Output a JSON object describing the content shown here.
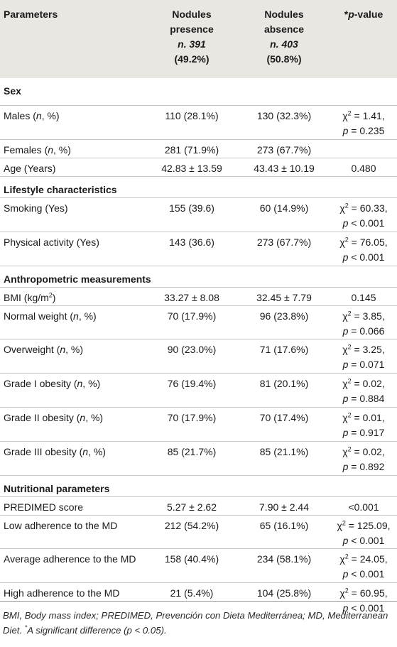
{
  "header": {
    "parameters": "Parameters",
    "presence": [
      "Nodules",
      "presence",
      "n. 391",
      "(49.2%)"
    ],
    "absence": [
      "Nodules",
      "absence",
      "n. 403",
      "(50.8%)"
    ],
    "pvalue": "*p-value"
  },
  "rows": [
    {
      "type": "section",
      "label": "Sex"
    },
    {
      "label": "Males (n, %)",
      "p": "110 (28.1%)",
      "a": "130 (32.3%)",
      "v": [
        "χ2 = 1.41,",
        "p = 0.235"
      ]
    },
    {
      "label": "Females (n, %)",
      "p": "281 (71.9%)",
      "a": "273 (67.7%)",
      "v": []
    },
    {
      "label": "Age (Years)",
      "p": "42.83 ± 13.59",
      "a": "43.43 ± 10.19",
      "v": [
        "0.480"
      ]
    },
    {
      "type": "section",
      "label": "Lifestyle characteristics"
    },
    {
      "label": "Smoking (Yes)",
      "p": "155 (39.6)",
      "a": "60 (14.9%)",
      "v": [
        "χ2 = 60.33,",
        "p < 0.001"
      ]
    },
    {
      "label": "Physical activity (Yes)",
      "p": "143 (36.6)",
      "a": "273 (67.7%)",
      "v": [
        "χ2 = 76.05,",
        "p < 0.001"
      ]
    },
    {
      "type": "section",
      "label": "Anthropometric measurements"
    },
    {
      "label": "BMI (kg/m2)",
      "p": "33.27 ± 8.08",
      "a": "32.45 ± 7.79",
      "v": [
        "0.145"
      ]
    },
    {
      "label": "Normal weight (n, %)",
      "p": "70 (17.9%)",
      "a": "96 (23.8%)",
      "v": [
        "χ2 = 3.85,",
        "p = 0.066"
      ]
    },
    {
      "label": "Overweight (n, %)",
      "p": "90 (23.0%)",
      "a": "71 (17.6%)",
      "v": [
        "χ2 = 3.25,",
        "p = 0.071"
      ]
    },
    {
      "label": "Grade I obesity (n, %)",
      "p": "76 (19.4%)",
      "a": "81 (20.1%)",
      "v": [
        "χ2 = 0.02,",
        "p = 0.884"
      ]
    },
    {
      "label": "Grade II obesity (n, %)",
      "p": "70 (17.9%)",
      "a": "70 (17.4%)",
      "v": [
        "χ2 = 0.01,",
        "p = 0.917"
      ]
    },
    {
      "label": "Grade III obesity (n, %)",
      "p": "85 (21.7%)",
      "a": "85 (21.1%)",
      "v": [
        "χ2 = 0.02,",
        "p = 0.892"
      ]
    },
    {
      "type": "section",
      "label": "Nutritional parameters"
    },
    {
      "label": "PREDIMED score",
      "p": "5.27 ± 2.62",
      "a": "7.90 ± 2.44",
      "v": [
        "<0.001"
      ]
    },
    {
      "label": "Low adherence to the MD",
      "p": "212 (54.2%)",
      "a": "65 (16.1%)",
      "v": [
        "χ2 = 125.09,",
        "p < 0.001"
      ]
    },
    {
      "label": "Average adherence to the MD",
      "p": "158 (40.4%)",
      "a": "234 (58.1%)",
      "v": [
        "χ2 = 24.05,",
        "p < 0.001"
      ]
    },
    {
      "label": "High adherence to the MD",
      "p": "21 (5.4%)",
      "a": "104 (25.8%)",
      "v": [
        "χ2 = 60.95,",
        "p < 0.001"
      ]
    }
  ],
  "footnote": "BMI, Body mass index; PREDIMED, Prevención con Dieta Mediterránea; MD, Mediterranean Diet. *A significant difference (p < 0.05)."
}
